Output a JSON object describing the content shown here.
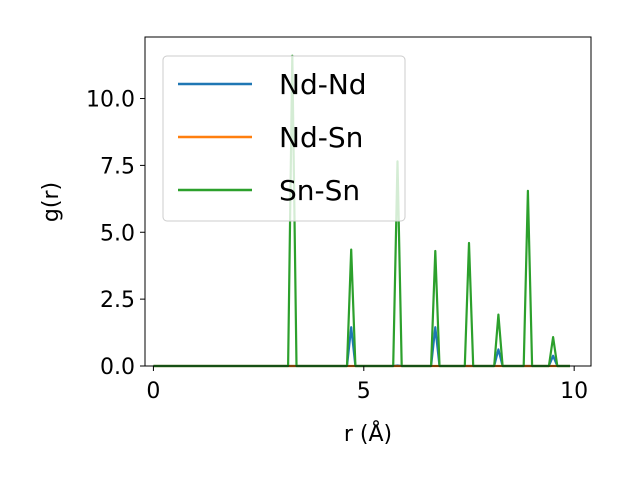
{
  "chart_data": {
    "type": "line",
    "title": "",
    "xlabel": "r (Å)",
    "ylabel": "g(r)",
    "xlim": [
      -0.2,
      10.4
    ],
    "ylim": [
      0,
      12.3
    ],
    "xticks": [
      0,
      5,
      10
    ],
    "xtick_labels": [
      "0",
      "5",
      "10"
    ],
    "yticks": [
      0.0,
      2.5,
      5.0,
      7.5,
      10.0
    ],
    "ytick_labels": [
      "0.0",
      "2.5",
      "5.0",
      "7.5",
      "10.0"
    ],
    "grid": false,
    "legend": {
      "position": "top-left",
      "entries": [
        "Nd-Nd",
        "Nd-Sn",
        "Sn-Sn"
      ]
    },
    "series": [
      {
        "name": "Nd-Nd",
        "color": "#1f77b4",
        "x": [
          0,
          4.6,
          4.7,
          4.8,
          5.7,
          5.8,
          5.9,
          6.6,
          6.7,
          6.8,
          8.1,
          8.2,
          8.3,
          9.4,
          9.5,
          9.6,
          9.9
        ],
        "y": [
          0,
          0,
          1.45,
          0,
          0,
          0.02,
          0,
          0,
          1.45,
          0,
          0,
          0.62,
          0,
          0,
          0.38,
          0,
          0
        ]
      },
      {
        "name": "Nd-Sn",
        "color": "#ff7f0e",
        "x": [
          0,
          9.9
        ],
        "y": [
          0,
          0
        ]
      },
      {
        "name": "Sn-Sn",
        "color": "#2ca02c",
        "x": [
          0,
          3.2,
          3.3,
          3.4,
          4.6,
          4.7,
          4.8,
          5.7,
          5.8,
          5.9,
          6.6,
          6.7,
          6.8,
          7.4,
          7.5,
          7.6,
          8.1,
          8.2,
          8.3,
          8.8,
          8.9,
          9.0,
          9.4,
          9.5,
          9.6,
          9.9
        ],
        "y": [
          0,
          0,
          11.6,
          0,
          0,
          4.35,
          0,
          0,
          7.65,
          0,
          0,
          4.3,
          0,
          0,
          4.6,
          0,
          0,
          1.92,
          0,
          0,
          6.55,
          0,
          0,
          1.08,
          0,
          0
        ]
      }
    ]
  }
}
